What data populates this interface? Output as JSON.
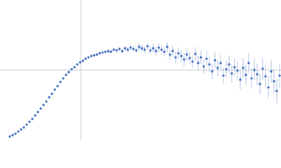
{
  "chart_data": {
    "type": "scatter",
    "color": "#3a67c0",
    "error_color": "#9db4e0",
    "xlim": [
      0,
      400
    ],
    "ylim": [
      0,
      200
    ],
    "xticks": [
      115
    ],
    "yticks": [
      100
    ],
    "grid": true,
    "x": [
      14,
      18,
      22,
      26,
      30,
      34,
      38,
      42,
      46,
      50,
      54,
      58,
      62,
      66,
      70,
      74,
      78,
      82,
      86,
      90,
      94,
      98,
      102,
      106,
      110,
      114,
      118,
      122,
      126,
      130,
      134,
      138,
      142,
      146,
      150,
      154,
      158,
      162,
      166,
      170,
      174,
      178,
      182,
      186,
      190,
      194,
      198,
      202,
      206,
      210,
      214,
      218,
      222,
      226,
      230,
      234,
      238,
      242,
      246,
      250,
      254,
      258,
      262,
      266,
      270,
      274,
      278,
      282,
      286,
      290,
      294,
      298,
      302,
      306,
      310,
      314,
      318,
      322,
      326,
      330,
      334,
      338,
      342,
      346,
      350,
      354,
      358,
      362,
      366,
      370,
      374,
      378,
      382,
      386,
      390,
      394,
      398
    ],
    "values": [
      5,
      7,
      9,
      12,
      15,
      18,
      22,
      26,
      30,
      35,
      40,
      45,
      50,
      55,
      61,
      66,
      72,
      77,
      83,
      88,
      93,
      97,
      101,
      104,
      108,
      111,
      113,
      116,
      118,
      120,
      121,
      122,
      124,
      125,
      126,
      127,
      126,
      129,
      128,
      130,
      127,
      131,
      129,
      132,
      130,
      128,
      133,
      131,
      129,
      134,
      128,
      131,
      127,
      132,
      129,
      126,
      133,
      122,
      127,
      118,
      124,
      120,
      115,
      122,
      117,
      112,
      123,
      110,
      118,
      105,
      116,
      108,
      98,
      114,
      103,
      110,
      92,
      101,
      108,
      95,
      104,
      99,
      86,
      103,
      93,
      110,
      88,
      100,
      94,
      80,
      102,
      91,
      75,
      98,
      84,
      70,
      92
    ],
    "errors": [
      0,
      0,
      0,
      0,
      0,
      0,
      0,
      0,
      0,
      0,
      0,
      0,
      0,
      0,
      0,
      0,
      0,
      0,
      0,
      0,
      0,
      0,
      0,
      0,
      0,
      0,
      0,
      0,
      0,
      0,
      0,
      0,
      0,
      0,
      0,
      2,
      2,
      2,
      3,
      3,
      3,
      3,
      4,
      4,
      4,
      4,
      5,
      5,
      5,
      5,
      6,
      6,
      6,
      6,
      7,
      7,
      7,
      7,
      8,
      8,
      8,
      8,
      9,
      9,
      9,
      9,
      10,
      10,
      10,
      10,
      11,
      11,
      11,
      11,
      12,
      12,
      12,
      12,
      13,
      13,
      13,
      13,
      14,
      14,
      14,
      14,
      15,
      15,
      15,
      15,
      16,
      16,
      16,
      16,
      17,
      17,
      17
    ]
  }
}
